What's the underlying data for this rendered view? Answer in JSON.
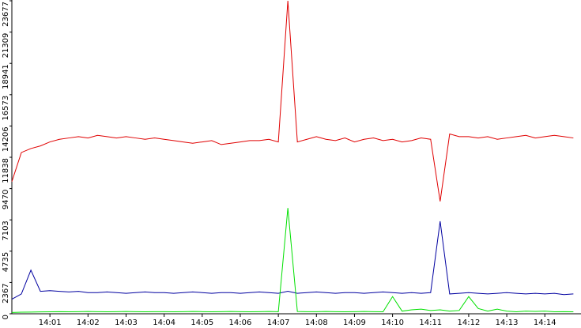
{
  "chart_data": {
    "type": "line",
    "x": [
      0,
      0.25,
      0.5,
      0.75,
      1,
      1.25,
      1.5,
      1.75,
      2,
      2.25,
      2.5,
      2.75,
      3,
      3.25,
      3.5,
      3.75,
      4,
      4.25,
      4.5,
      4.75,
      5,
      5.25,
      5.5,
      5.75,
      6,
      6.25,
      6.5,
      6.75,
      7,
      7.25,
      7.5,
      7.75,
      8,
      8.25,
      8.5,
      8.75,
      9,
      9.25,
      9.5,
      9.75,
      10,
      10.25,
      10.5,
      10.75,
      11,
      11.25,
      11.5,
      11.75,
      12,
      12.25,
      12.5,
      12.75,
      13,
      13.25,
      13.5,
      13.75,
      14,
      14.25,
      14.5,
      14.75
    ],
    "series": [
      {
        "color": "#e00000",
        "values": [
          10000,
          12200,
          12500,
          12700,
          13000,
          13200,
          13300,
          13400,
          13300,
          13500,
          13400,
          13300,
          13400,
          13300,
          13200,
          13300,
          13200,
          13100,
          13000,
          12900,
          13000,
          13100,
          12800,
          12900,
          13000,
          13100,
          13100,
          13200,
          13000,
          23677,
          13000,
          13200,
          13400,
          13200,
          13100,
          13300,
          13000,
          13200,
          13300,
          13100,
          13200,
          13000,
          13100,
          13300,
          13200,
          8500,
          13600,
          13400,
          13400,
          13300,
          13400,
          13200,
          13300,
          13400,
          13500,
          13300,
          13400,
          13500,
          13400,
          13300
        ]
      },
      {
        "color": "#0000a0",
        "values": [
          1100,
          1500,
          3300,
          1700,
          1750,
          1700,
          1650,
          1700,
          1600,
          1600,
          1650,
          1600,
          1550,
          1600,
          1650,
          1600,
          1600,
          1550,
          1600,
          1650,
          1600,
          1550,
          1600,
          1600,
          1550,
          1600,
          1650,
          1600,
          1550,
          1700,
          1550,
          1600,
          1650,
          1600,
          1550,
          1600,
          1600,
          1550,
          1600,
          1650,
          1600,
          1550,
          1600,
          1550,
          1600,
          7000,
          1500,
          1550,
          1600,
          1550,
          1500,
          1550,
          1600,
          1550,
          1500,
          1550,
          1500,
          1550,
          1450,
          1500
        ]
      },
      {
        "color": "#00e000",
        "values": [
          100,
          120,
          130,
          140,
          150,
          160,
          150,
          160,
          170,
          160,
          150,
          160,
          170,
          160,
          150,
          160,
          160,
          150,
          160,
          170,
          160,
          150,
          160,
          170,
          160,
          150,
          160,
          170,
          160,
          8000,
          170,
          160,
          160,
          170,
          160,
          150,
          160,
          170,
          160,
          150,
          1300,
          200,
          300,
          350,
          250,
          300,
          200,
          250,
          1300,
          400,
          200,
          350,
          200,
          150,
          200,
          180,
          200,
          150,
          160,
          150
        ]
      }
    ],
    "xlim": [
      0,
      14.95
    ],
    "xticks": [
      {
        "value": 1,
        "label": "14:01"
      },
      {
        "value": 2,
        "label": "14:02"
      },
      {
        "value": 3,
        "label": "14:03"
      },
      {
        "value": 4,
        "label": "14:04"
      },
      {
        "value": 5,
        "label": "14:05"
      },
      {
        "value": 6,
        "label": "14:06"
      },
      {
        "value": 7,
        "label": "14:07"
      },
      {
        "value": 8,
        "label": "14:08"
      },
      {
        "value": 9,
        "label": "14:09"
      },
      {
        "value": 10,
        "label": "14:10"
      },
      {
        "value": 11,
        "label": "14:11"
      },
      {
        "value": 12,
        "label": "14:12"
      },
      {
        "value": 13,
        "label": "14:13"
      },
      {
        "value": 14,
        "label": "14:14"
      }
    ],
    "ylim": [
      0,
      23677
    ],
    "yticks": [
      0,
      2367,
      4735,
      7103,
      9470,
      11838,
      14206,
      16573,
      18941,
      21309,
      23677
    ]
  }
}
